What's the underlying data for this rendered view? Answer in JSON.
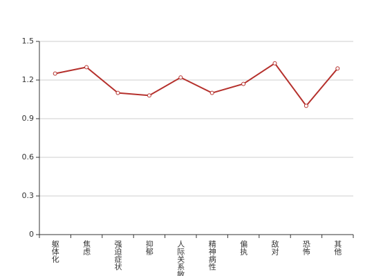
{
  "chart_data": {
    "type": "line",
    "categories": [
      "躯体化",
      "焦虑",
      "强迫症状",
      "抑郁",
      "人际关系敏感",
      "精神病性",
      "偏执",
      "敌对",
      "恐怖",
      "其他"
    ],
    "values": [
      1.25,
      1.3,
      1.1,
      1.08,
      1.22,
      1.1,
      1.17,
      1.33,
      1.0,
      1.29
    ],
    "color": "#b5302c",
    "ylim": [
      0,
      1.5
    ],
    "yticks": [
      0,
      0.3,
      0.6,
      0.9,
      1.2,
      1.5
    ],
    "grid": true
  }
}
